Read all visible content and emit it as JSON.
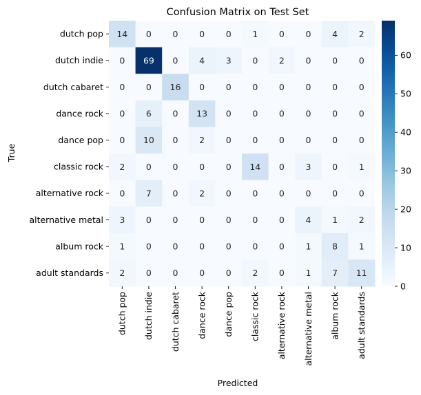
{
  "chart_data": {
    "type": "heatmap",
    "title": "Confusion Matrix on Test Set",
    "xlabel": "Predicted",
    "ylabel": "True",
    "row_labels": [
      "dutch pop",
      "dutch indie",
      "dutch cabaret",
      "dance rock",
      "dance pop",
      "classic rock",
      "alternative rock",
      "alternative metal",
      "album rock",
      "adult standards"
    ],
    "col_labels": [
      "dutch pop",
      "dutch indie",
      "dutch cabaret",
      "dance rock",
      "dance pop",
      "classic rock",
      "alternative rock",
      "alternative metal",
      "album rock",
      "adult standards"
    ],
    "values": [
      [
        14,
        0,
        0,
        0,
        0,
        1,
        0,
        0,
        4,
        2
      ],
      [
        0,
        69,
        0,
        4,
        3,
        0,
        2,
        0,
        0,
        0
      ],
      [
        0,
        0,
        16,
        0,
        0,
        0,
        0,
        0,
        0,
        0
      ],
      [
        0,
        6,
        0,
        13,
        0,
        0,
        0,
        0,
        0,
        0
      ],
      [
        0,
        10,
        0,
        2,
        0,
        0,
        0,
        0,
        0,
        0
      ],
      [
        2,
        0,
        0,
        0,
        0,
        14,
        0,
        3,
        0,
        1
      ],
      [
        0,
        7,
        0,
        2,
        0,
        0,
        0,
        0,
        0,
        0
      ],
      [
        3,
        0,
        0,
        0,
        0,
        0,
        0,
        4,
        1,
        2
      ],
      [
        1,
        0,
        0,
        0,
        0,
        0,
        0,
        1,
        8,
        1
      ],
      [
        2,
        0,
        0,
        0,
        0,
        2,
        0,
        1,
        7,
        11
      ]
    ],
    "colormap": "Blues",
    "colorbar": {
      "min": 0,
      "max": 69,
      "ticks": [
        0,
        10,
        20,
        30,
        40,
        50,
        60
      ]
    },
    "text_colors": {
      "light_cell": "#262626",
      "dark_cell": "#ffffff"
    },
    "grid": false
  }
}
